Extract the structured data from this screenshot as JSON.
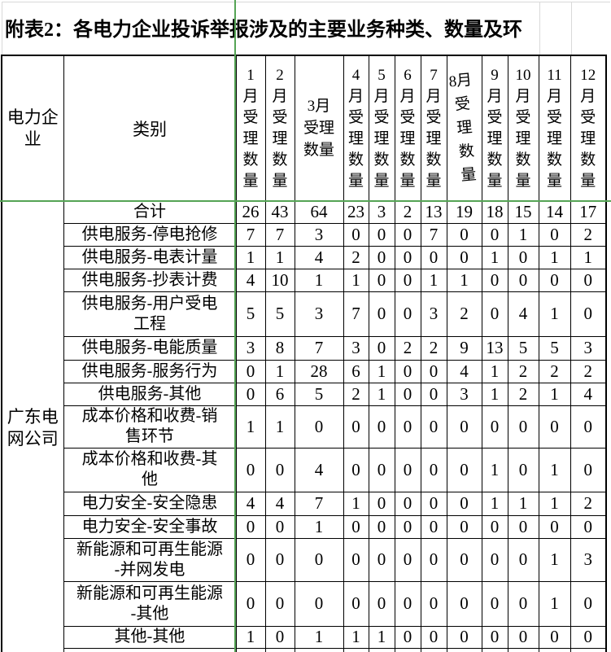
{
  "title": "附表2：各电力企业投诉举报涉及的主要业务种类、数量及环",
  "colors": {
    "page_break_green": "#55a455",
    "gridline_gray": "#d9d9d9",
    "border_black": "#000000"
  },
  "table": {
    "corner_header": "电力企\n业",
    "category_header": "类别",
    "month_headers": [
      {
        "label": "1月受理数量",
        "lines": [
          "1",
          "月",
          "受",
          "理",
          "数",
          "量"
        ]
      },
      {
        "label": "2月受理数量",
        "lines": [
          "2",
          "月",
          "受",
          "理",
          "数",
          "量"
        ]
      },
      {
        "label": "3月受理数量",
        "lines": [
          "3月",
          "受理",
          "数量"
        ]
      },
      {
        "label": "4月受理数量",
        "lines": [
          "4",
          "月",
          "受",
          "理",
          "数",
          "量"
        ]
      },
      {
        "label": "5月受理数量",
        "lines": [
          "5",
          "月",
          "受",
          "理",
          "数",
          "量"
        ]
      },
      {
        "label": "6月受理数量",
        "lines": [
          "6",
          "月",
          "受",
          "理",
          "数",
          "量"
        ]
      },
      {
        "label": "7月受理数量",
        "lines": [
          "7",
          "月",
          "受",
          "理",
          "数",
          "量"
        ]
      },
      {
        "label": "8月受理数量",
        "lines": [
          "8月",
          "受",
          "理",
          "数",
          "量"
        ]
      },
      {
        "label": "9月受理数量",
        "lines": [
          "9",
          "月",
          "受",
          "理",
          "数",
          "量"
        ]
      },
      {
        "label": "10月受理数量",
        "lines": [
          "10",
          "月",
          "受",
          "理",
          "数",
          "量"
        ]
      },
      {
        "label": "11月受理数量",
        "lines": [
          "11",
          "月",
          "受",
          "理",
          "数",
          "量"
        ]
      },
      {
        "label": "12月受理数量",
        "lines": [
          "12",
          "月",
          "受",
          "理",
          "数",
          "量"
        ]
      }
    ],
    "company": "广东电\n网公司",
    "rows": [
      {
        "label": "合计",
        "values": [
          26,
          43,
          64,
          23,
          3,
          2,
          13,
          19,
          18,
          15,
          14,
          17
        ]
      },
      {
        "label": "供电服务-停电抢修",
        "values": [
          7,
          7,
          3,
          0,
          0,
          0,
          7,
          0,
          0,
          1,
          0,
          2
        ]
      },
      {
        "label": "供电服务-电表计量",
        "values": [
          1,
          1,
          4,
          2,
          0,
          0,
          0,
          0,
          1,
          0,
          1,
          1
        ]
      },
      {
        "label": "供电服务-抄表计费",
        "values": [
          4,
          10,
          1,
          1,
          0,
          0,
          1,
          1,
          0,
          0,
          0,
          0
        ]
      },
      {
        "label": "供电服务-用户受电\n工程",
        "values": [
          5,
          5,
          3,
          7,
          0,
          0,
          3,
          2,
          0,
          4,
          1,
          0
        ]
      },
      {
        "label": "供电服务-电能质量",
        "values": [
          3,
          8,
          7,
          3,
          0,
          2,
          2,
          9,
          13,
          5,
          5,
          3
        ]
      },
      {
        "label": "供电服务-服务行为",
        "values": [
          0,
          1,
          28,
          6,
          1,
          0,
          0,
          4,
          1,
          2,
          2,
          2
        ]
      },
      {
        "label": "供电服务-其他",
        "values": [
          0,
          6,
          5,
          2,
          1,
          0,
          0,
          3,
          1,
          2,
          1,
          4
        ]
      },
      {
        "label": "成本价格和收费-销\n售环节",
        "values": [
          1,
          1,
          0,
          0,
          0,
          0,
          0,
          0,
          0,
          0,
          0,
          0
        ]
      },
      {
        "label": "成本价格和收费-其\n他",
        "values": [
          0,
          0,
          4,
          0,
          0,
          0,
          0,
          0,
          1,
          0,
          1,
          0
        ]
      },
      {
        "label": "电力安全-安全隐患",
        "values": [
          4,
          4,
          7,
          1,
          0,
          0,
          0,
          0,
          1,
          1,
          1,
          2
        ]
      },
      {
        "label": "电力安全-安全事故",
        "values": [
          0,
          0,
          1,
          0,
          0,
          0,
          0,
          0,
          0,
          0,
          0,
          0
        ]
      },
      {
        "label": "新能源和可再生能源\n-并网发电",
        "values": [
          0,
          0,
          0,
          0,
          0,
          0,
          0,
          0,
          0,
          0,
          1,
          3
        ]
      },
      {
        "label": "新能源和可再生能源\n-其他",
        "values": [
          0,
          0,
          0,
          0,
          0,
          0,
          0,
          0,
          0,
          0,
          1,
          0
        ]
      },
      {
        "label": "其他-其他",
        "values": [
          1,
          0,
          1,
          1,
          1,
          0,
          0,
          0,
          0,
          0,
          0,
          0
        ]
      }
    ]
  }
}
